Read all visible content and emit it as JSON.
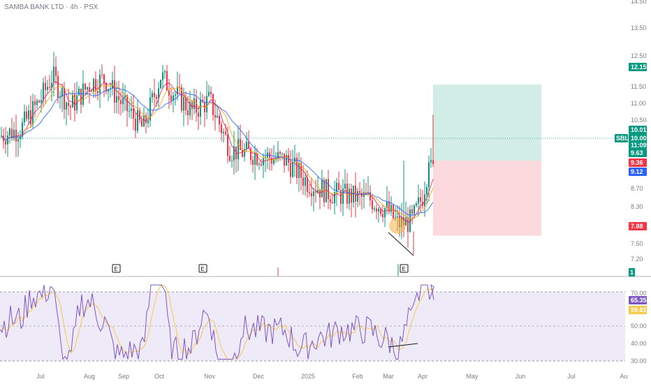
{
  "header": {
    "title": "SAMBA BANK LTD · 4h · PSX"
  },
  "colors": {
    "up": "#089981",
    "down": "#f23645",
    "ma_fast": "#e91e63",
    "ma_mid": "#f7a600",
    "ma_slow": "#2962ff",
    "target_zone": "#bfe6dc",
    "stop_zone": "#fbd0d3",
    "rsi_line": "#7e57c2",
    "rsi_signal": "#f7c948",
    "rsi_band": "#efeaf8"
  },
  "price_axis": {
    "ticks": [
      "14.50",
      "13.50",
      "12.50",
      "11.50",
      "11.00",
      "10.50",
      "9.63",
      "8.70",
      "8.30",
      "7.50",
      "7.20"
    ]
  },
  "rsi_axis": {
    "ticks": [
      "70.00",
      "50.00",
      "40.00",
      "30.00"
    ]
  },
  "time_axis": {
    "labels": [
      "Jul",
      "Aug",
      "Sep",
      "Oct",
      "Nov",
      "Dec",
      "2025",
      "Feb",
      "Mar",
      "Apr",
      "May",
      "Jun",
      "Jul",
      "Au"
    ]
  },
  "earnings_markers": [
    "E",
    "E",
    "E"
  ],
  "badges": {
    "target": "12.15",
    "last_price": "10.01",
    "symbol": "SBL",
    "entry": "10.00",
    "countdown": "11:09",
    "ma_mid_value": "9.63",
    "ma_fast_value": "9.36",
    "ma_slow_value": "9.12",
    "stop": "7.88",
    "volume": "1",
    "rsi_value": "65.35",
    "rsi_signal_value": "59.81"
  },
  "chart_data": [
    {
      "type": "candlestick",
      "title": "SAMBA BANK LTD · 4h · PSX",
      "x": [
        "Jul",
        "Aug",
        "Sep",
        "Oct",
        "Nov",
        "Dec",
        "2025",
        "Feb",
        "Mar",
        "Apr"
      ],
      "close": [
        11.2,
        12.4,
        11.9,
        12.6,
        11.5,
        10.2,
        9.7,
        9.1,
        8.4,
        10.01
      ],
      "high": [
        13.4,
        13.5,
        12.9,
        13.5,
        12.6,
        10.6,
        10.1,
        9.6,
        9.9,
        11.4
      ],
      "low": [
        9.8,
        10.4,
        9.7,
        10.9,
        9.5,
        9.3,
        9.0,
        8.1,
        7.4,
        8.2
      ],
      "ylim": [
        7.2,
        14.5
      ],
      "long_position": {
        "target": 12.15,
        "entry": 10.0,
        "stop": 7.88
      },
      "moving_averages": [
        {
          "value": 9.63
        },
        {
          "value": 9.36
        },
        {
          "value": 9.12
        }
      ]
    },
    {
      "type": "line",
      "x": [
        "Jul",
        "Aug",
        "Sep",
        "Oct",
        "Nov",
        "Dec",
        "2025",
        "Feb",
        "Mar",
        "Apr"
      ],
      "series": [
        {
          "values": [
            52,
            58,
            46,
            56,
            40,
            46,
            48,
            44,
            42,
            65.35
          ]
        },
        {
          "values": [
            51,
            55,
            48,
            54,
            43,
            47,
            47,
            45,
            43,
            59.81
          ]
        }
      ],
      "ylim": [
        30,
        75
      ],
      "levels": [
        70,
        50,
        30
      ]
    }
  ]
}
